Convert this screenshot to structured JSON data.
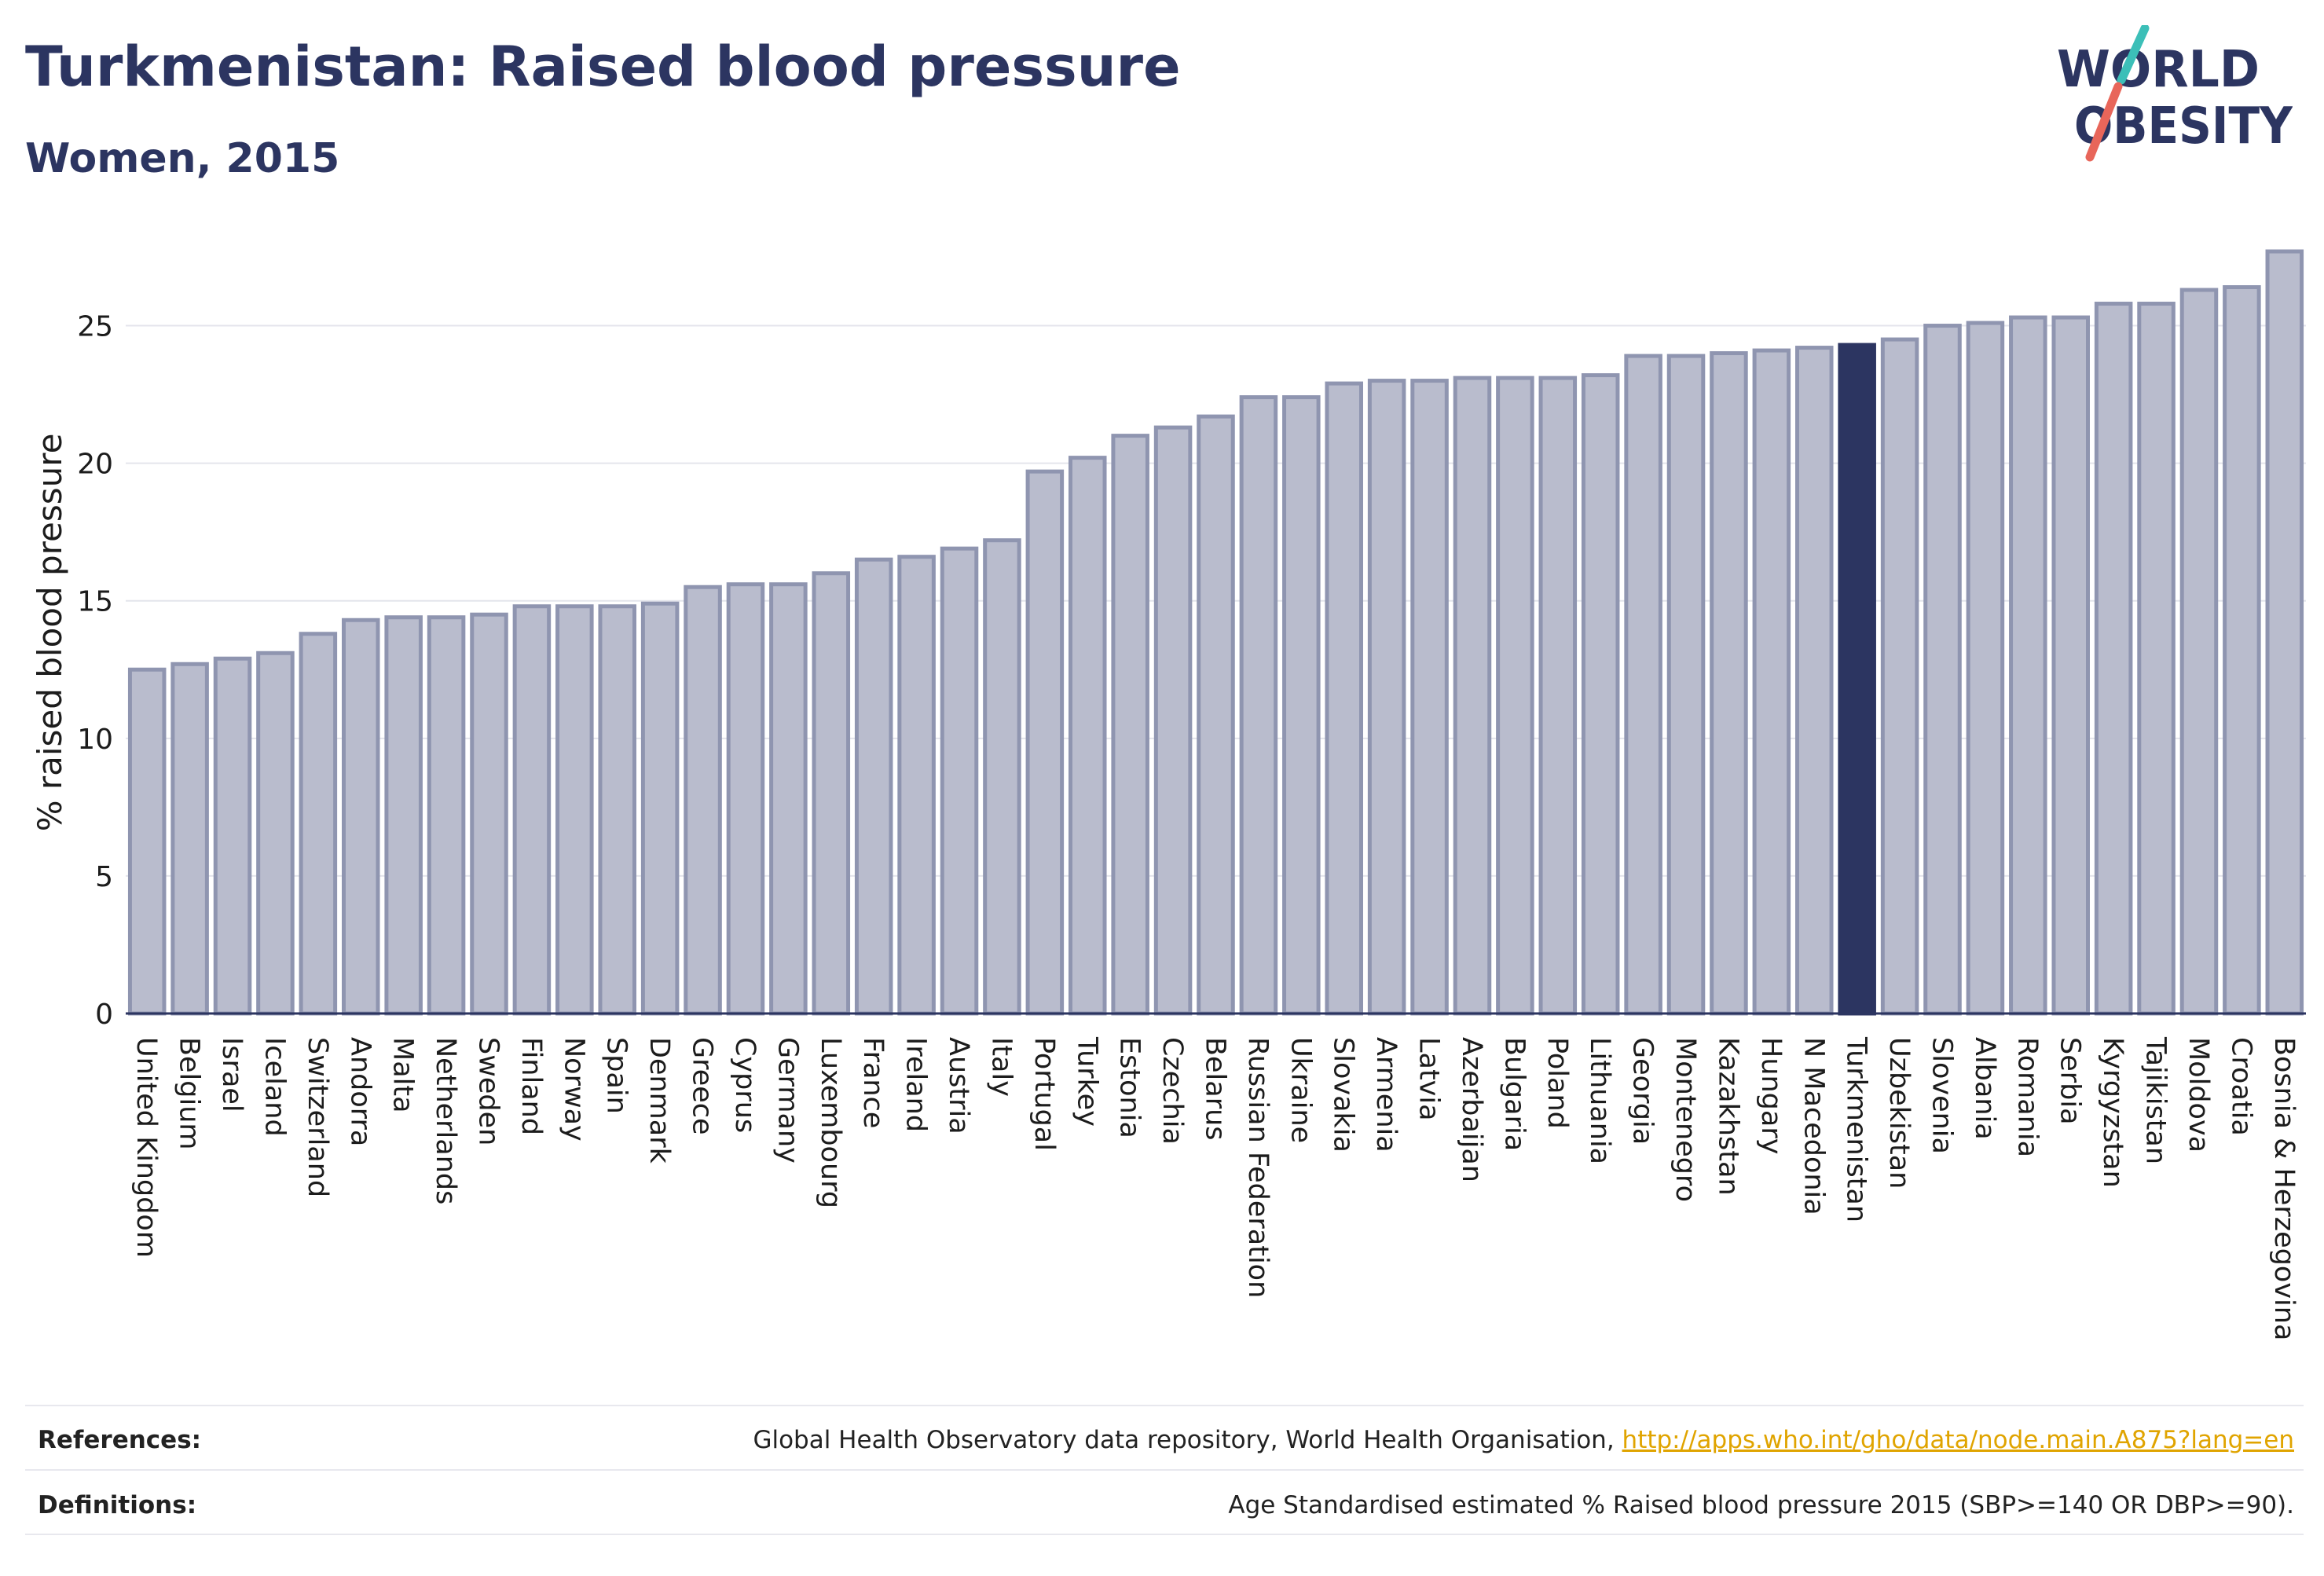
{
  "header": {
    "title": "Turkmenistan: Raised blood pressure",
    "subtitle": "Women, 2015"
  },
  "logo": {
    "line1": "WORLD",
    "line2": "OBESITY",
    "text_color": "#2c3561",
    "slash_colors": [
      "#3cbfb8",
      "#e8665a"
    ]
  },
  "chart_data": {
    "type": "bar",
    "ylabel": "% raised blood pressure",
    "ylim": [
      0,
      27.7
    ],
    "yticks": [
      0,
      5,
      10,
      15,
      20,
      25
    ],
    "grid": true,
    "highlight": "Turkmenistan",
    "colors": {
      "bar": "#b9bccd",
      "bar_border": "#8f95b0",
      "highlight": "#2c3561"
    },
    "categories": [
      "United Kingdom",
      "Belgium",
      "Israel",
      "Iceland",
      "Switzerland",
      "Andorra",
      "Malta",
      "Netherlands",
      "Sweden",
      "Finland",
      "Norway",
      "Spain",
      "Denmark",
      "Greece",
      "Cyprus",
      "Germany",
      "Luxembourg",
      "France",
      "Ireland",
      "Austria",
      "Italy",
      "Portugal",
      "Turkey",
      "Estonia",
      "Czechia",
      "Belarus",
      "Russian Federation",
      "Ukraine",
      "Slovakia",
      "Armenia",
      "Latvia",
      "Azerbaijan",
      "Bulgaria",
      "Poland",
      "Lithuania",
      "Georgia",
      "Montenegro",
      "Kazakhstan",
      "Hungary",
      "N Macedonia",
      "Turkmenistan",
      "Uzbekistan",
      "Slovenia",
      "Albania",
      "Romania",
      "Serbia",
      "Kyrgyzstan",
      "Tajikistan",
      "Moldova",
      "Croatia",
      "Bosnia & Herzegovina"
    ],
    "values": [
      12.5,
      12.7,
      12.9,
      13.1,
      13.8,
      14.3,
      14.4,
      14.4,
      14.5,
      14.8,
      14.8,
      14.8,
      14.9,
      15.5,
      15.6,
      15.6,
      16.0,
      16.5,
      16.6,
      16.9,
      17.2,
      19.7,
      20.2,
      21.0,
      21.3,
      21.7,
      22.4,
      22.4,
      22.9,
      23.0,
      23.0,
      23.1,
      23.1,
      23.1,
      23.2,
      23.9,
      23.9,
      24.0,
      24.1,
      24.2,
      24.3,
      24.5,
      25.0,
      25.1,
      25.3,
      25.3,
      25.8,
      25.8,
      26.3,
      26.4,
      27.7
    ]
  },
  "footer": {
    "references_label": "References:",
    "references_text": "Global Health Observatory data repository, World Health Organisation,",
    "references_link": "http://apps.who.int/gho/data/node.main.A875?lang=en",
    "definitions_label": "Definitions:",
    "definitions_text": "Age Standardised estimated % Raised blood pressure 2015 (SBP>=140 OR DBP>=90)."
  }
}
